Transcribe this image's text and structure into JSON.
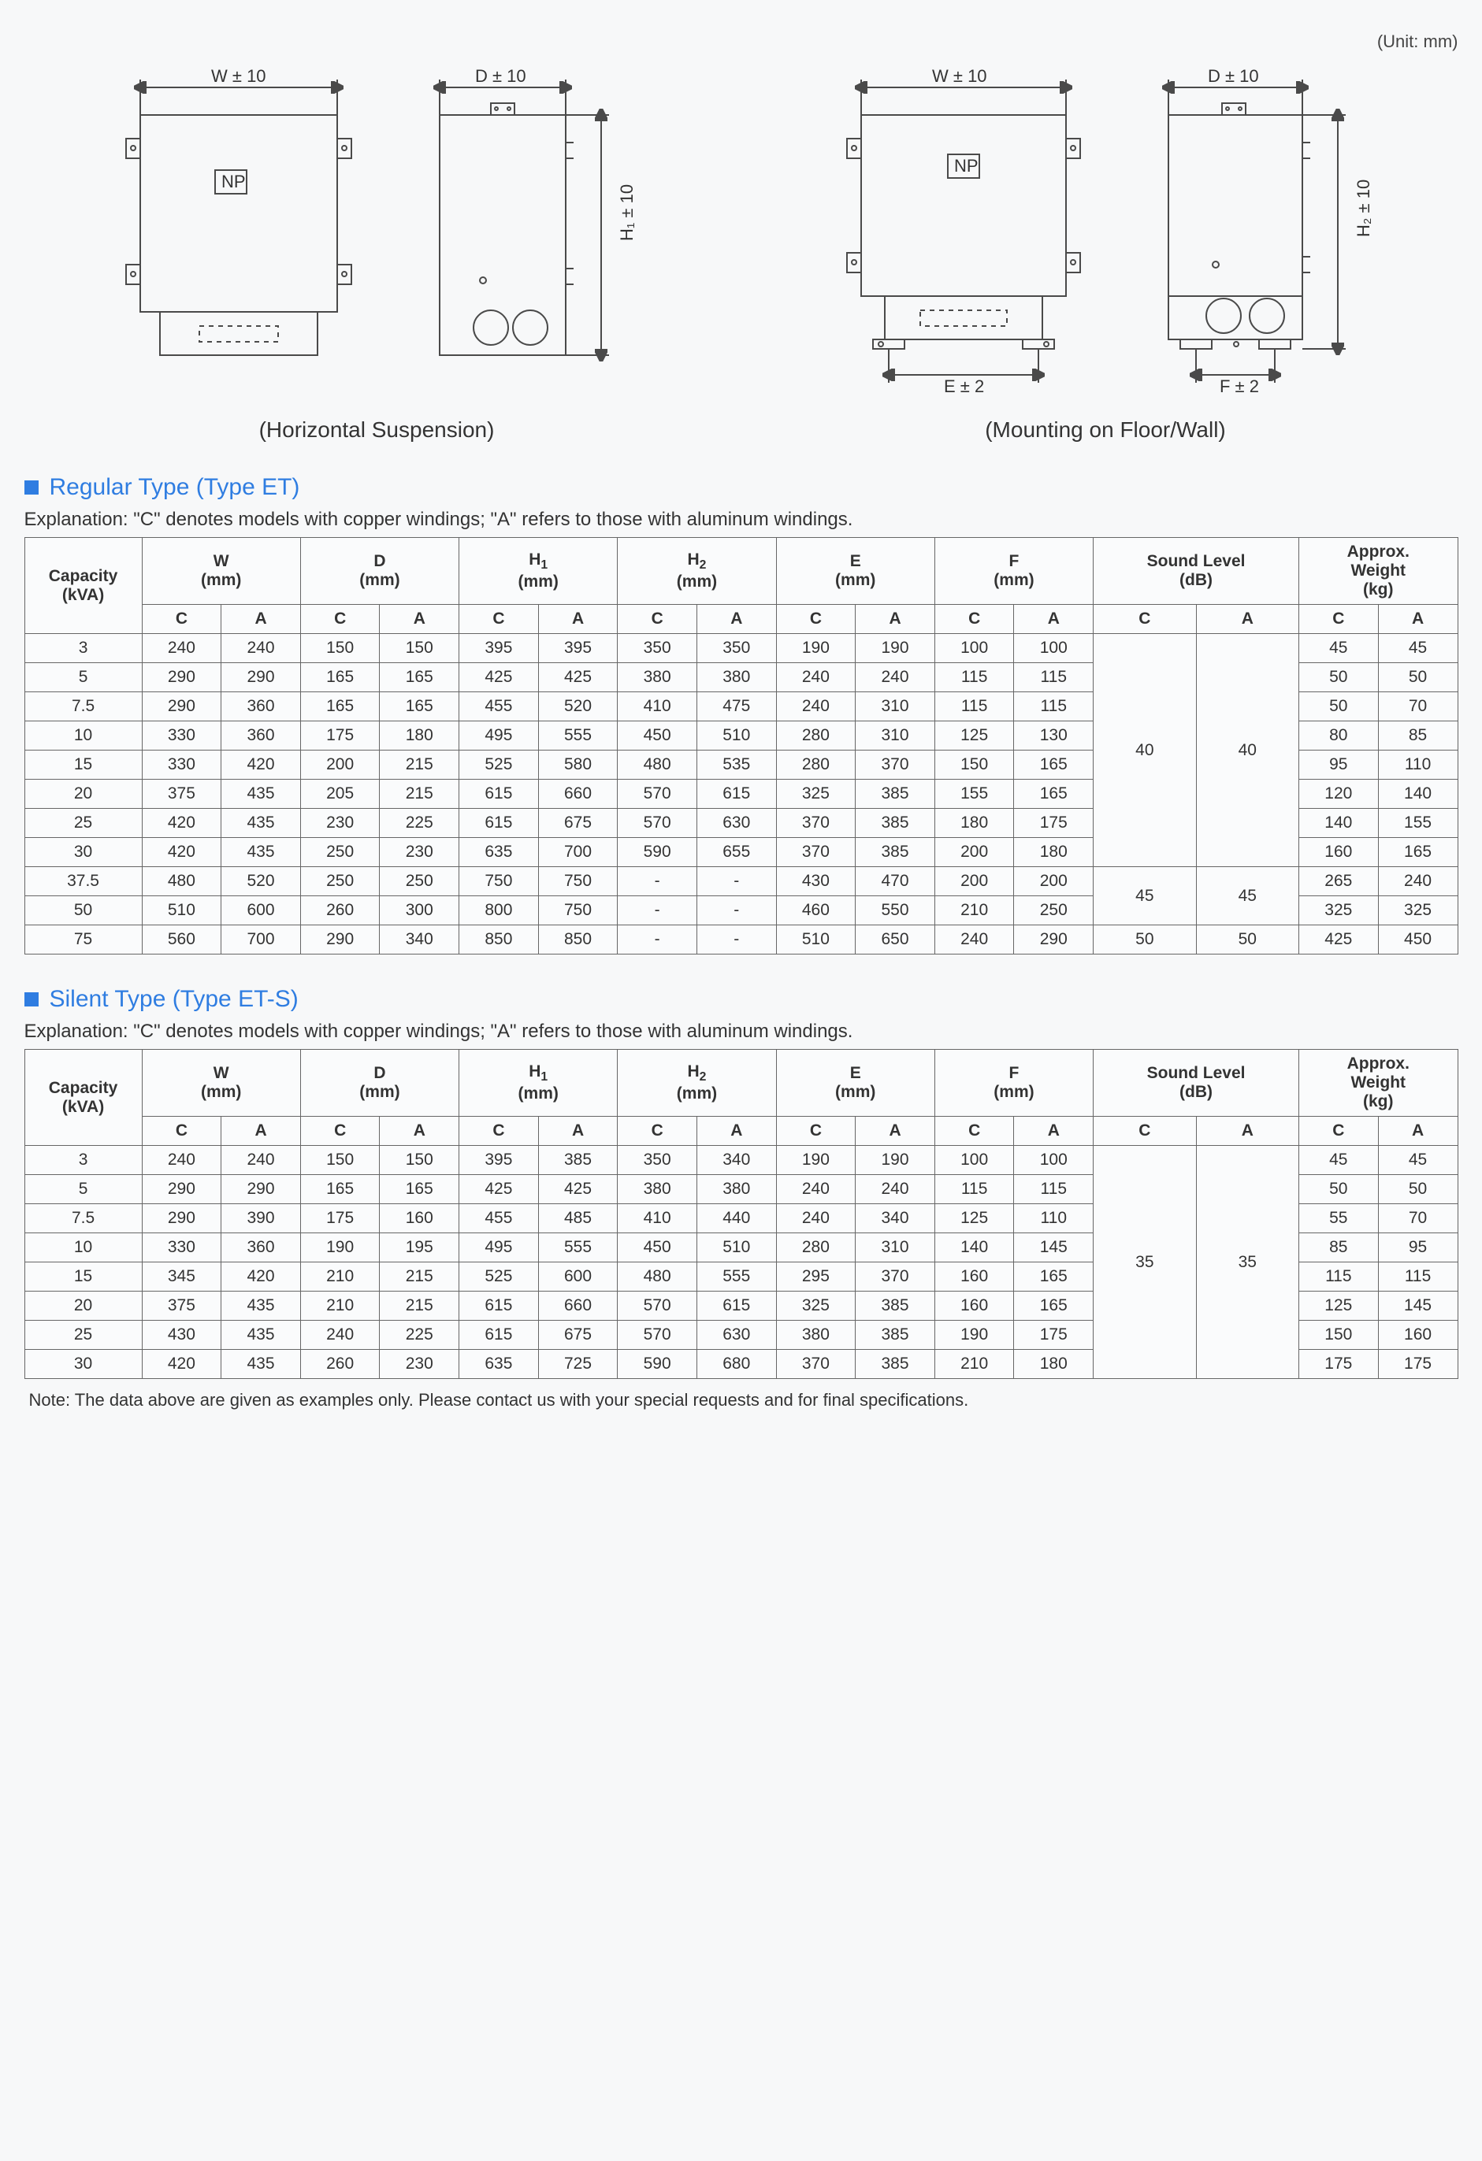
{
  "unit_label": "(Unit: mm)",
  "diagrams": {
    "horizontal": {
      "caption": "(Horizontal Suspension)"
    },
    "floor_wall": {
      "caption": "(Mounting on Floor/Wall)"
    },
    "labels": {
      "W": "W ± 10",
      "D": "D ± 10",
      "H1": "H₁ ± 10",
      "H2": "H₂ ± 10",
      "E": "E ± 2",
      "F": "F ± 2",
      "NP": "NP"
    },
    "colors": {
      "stroke": "#4a4a4a",
      "fill": "#f7f8f9",
      "text": "#333333"
    }
  },
  "sections": [
    {
      "title": "Regular Type (Type ET)",
      "explanation": "Explanation: \"C\" denotes models with copper windings; \"A\" refers to those with aluminum windings.",
      "headers": {
        "capacity": "Capacity\n(kVA)",
        "dim_cols": [
          {
            "label": "W",
            "unit": "(mm)"
          },
          {
            "label": "D",
            "unit": "(mm)"
          },
          {
            "label": "H1",
            "unit": "(mm)",
            "sub": "1"
          },
          {
            "label": "H2",
            "unit": "(mm)",
            "sub": "2"
          },
          {
            "label": "E",
            "unit": "(mm)"
          },
          {
            "label": "F",
            "unit": "(mm)"
          }
        ],
        "sound": "Sound Level\n(dB)",
        "weight": "Approx.\nWeight\n(kg)",
        "CA": [
          "C",
          "A"
        ]
      },
      "sound_merge": [
        {
          "rows": 8,
          "C": "40",
          "A": "40"
        },
        {
          "rows": 2,
          "C": "45",
          "A": "45"
        },
        {
          "rows": 1,
          "C": "50",
          "A": "50"
        }
      ],
      "rows": [
        {
          "cap": "3",
          "W": [
            "240",
            "240"
          ],
          "D": [
            "150",
            "150"
          ],
          "H1": [
            "395",
            "395"
          ],
          "H2": [
            "350",
            "350"
          ],
          "E": [
            "190",
            "190"
          ],
          "F": [
            "100",
            "100"
          ],
          "wt": [
            "45",
            "45"
          ]
        },
        {
          "cap": "5",
          "W": [
            "290",
            "290"
          ],
          "D": [
            "165",
            "165"
          ],
          "H1": [
            "425",
            "425"
          ],
          "H2": [
            "380",
            "380"
          ],
          "E": [
            "240",
            "240"
          ],
          "F": [
            "115",
            "115"
          ],
          "wt": [
            "50",
            "50"
          ]
        },
        {
          "cap": "7.5",
          "W": [
            "290",
            "360"
          ],
          "D": [
            "165",
            "165"
          ],
          "H1": [
            "455",
            "520"
          ],
          "H2": [
            "410",
            "475"
          ],
          "E": [
            "240",
            "310"
          ],
          "F": [
            "115",
            "115"
          ],
          "wt": [
            "50",
            "70"
          ]
        },
        {
          "cap": "10",
          "W": [
            "330",
            "360"
          ],
          "D": [
            "175",
            "180"
          ],
          "H1": [
            "495",
            "555"
          ],
          "H2": [
            "450",
            "510"
          ],
          "E": [
            "280",
            "310"
          ],
          "F": [
            "125",
            "130"
          ],
          "wt": [
            "80",
            "85"
          ]
        },
        {
          "cap": "15",
          "W": [
            "330",
            "420"
          ],
          "D": [
            "200",
            "215"
          ],
          "H1": [
            "525",
            "580"
          ],
          "H2": [
            "480",
            "535"
          ],
          "E": [
            "280",
            "370"
          ],
          "F": [
            "150",
            "165"
          ],
          "wt": [
            "95",
            "110"
          ]
        },
        {
          "cap": "20",
          "W": [
            "375",
            "435"
          ],
          "D": [
            "205",
            "215"
          ],
          "H1": [
            "615",
            "660"
          ],
          "H2": [
            "570",
            "615"
          ],
          "E": [
            "325",
            "385"
          ],
          "F": [
            "155",
            "165"
          ],
          "wt": [
            "120",
            "140"
          ]
        },
        {
          "cap": "25",
          "W": [
            "420",
            "435"
          ],
          "D": [
            "230",
            "225"
          ],
          "H1": [
            "615",
            "675"
          ],
          "H2": [
            "570",
            "630"
          ],
          "E": [
            "370",
            "385"
          ],
          "F": [
            "180",
            "175"
          ],
          "wt": [
            "140",
            "155"
          ]
        },
        {
          "cap": "30",
          "W": [
            "420",
            "435"
          ],
          "D": [
            "250",
            "230"
          ],
          "H1": [
            "635",
            "700"
          ],
          "H2": [
            "590",
            "655"
          ],
          "E": [
            "370",
            "385"
          ],
          "F": [
            "200",
            "180"
          ],
          "wt": [
            "160",
            "165"
          ]
        },
        {
          "cap": "37.5",
          "W": [
            "480",
            "520"
          ],
          "D": [
            "250",
            "250"
          ],
          "H1": [
            "750",
            "750"
          ],
          "H2": [
            "-",
            "-"
          ],
          "E": [
            "430",
            "470"
          ],
          "F": [
            "200",
            "200"
          ],
          "wt": [
            "265",
            "240"
          ]
        },
        {
          "cap": "50",
          "W": [
            "510",
            "600"
          ],
          "D": [
            "260",
            "300"
          ],
          "H1": [
            "800",
            "750"
          ],
          "H2": [
            "-",
            "-"
          ],
          "E": [
            "460",
            "550"
          ],
          "F": [
            "210",
            "250"
          ],
          "wt": [
            "325",
            "325"
          ]
        },
        {
          "cap": "75",
          "W": [
            "560",
            "700"
          ],
          "D": [
            "290",
            "340"
          ],
          "H1": [
            "850",
            "850"
          ],
          "H2": [
            "-",
            "-"
          ],
          "E": [
            "510",
            "650"
          ],
          "F": [
            "240",
            "290"
          ],
          "wt": [
            "425",
            "450"
          ]
        }
      ]
    },
    {
      "title": "Silent Type (Type ET-S)",
      "explanation": "Explanation: \"C\" denotes models with copper windings; \"A\" refers to those with aluminum windings.",
      "headers": {
        "capacity": "Capacity\n(kVA)",
        "dim_cols": [
          {
            "label": "W",
            "unit": "(mm)"
          },
          {
            "label": "D",
            "unit": "(mm)"
          },
          {
            "label": "H1",
            "unit": "(mm)",
            "sub": "1"
          },
          {
            "label": "H2",
            "unit": "(mm)",
            "sub": "2"
          },
          {
            "label": "E",
            "unit": "(mm)"
          },
          {
            "label": "F",
            "unit": "(mm)"
          }
        ],
        "sound": "Sound Level\n(dB)",
        "weight": "Approx.\nWeight\n(kg)",
        "CA": [
          "C",
          "A"
        ]
      },
      "sound_merge": [
        {
          "rows": 8,
          "C": "35",
          "A": "35"
        }
      ],
      "rows": [
        {
          "cap": "3",
          "W": [
            "240",
            "240"
          ],
          "D": [
            "150",
            "150"
          ],
          "H1": [
            "395",
            "385"
          ],
          "H2": [
            "350",
            "340"
          ],
          "E": [
            "190",
            "190"
          ],
          "F": [
            "100",
            "100"
          ],
          "wt": [
            "45",
            "45"
          ]
        },
        {
          "cap": "5",
          "W": [
            "290",
            "290"
          ],
          "D": [
            "165",
            "165"
          ],
          "H1": [
            "425",
            "425"
          ],
          "H2": [
            "380",
            "380"
          ],
          "E": [
            "240",
            "240"
          ],
          "F": [
            "115",
            "115"
          ],
          "wt": [
            "50",
            "50"
          ]
        },
        {
          "cap": "7.5",
          "W": [
            "290",
            "390"
          ],
          "D": [
            "175",
            "160"
          ],
          "H1": [
            "455",
            "485"
          ],
          "H2": [
            "410",
            "440"
          ],
          "E": [
            "240",
            "340"
          ],
          "F": [
            "125",
            "110"
          ],
          "wt": [
            "55",
            "70"
          ]
        },
        {
          "cap": "10",
          "W": [
            "330",
            "360"
          ],
          "D": [
            "190",
            "195"
          ],
          "H1": [
            "495",
            "555"
          ],
          "H2": [
            "450",
            "510"
          ],
          "E": [
            "280",
            "310"
          ],
          "F": [
            "140",
            "145"
          ],
          "wt": [
            "85",
            "95"
          ]
        },
        {
          "cap": "15",
          "W": [
            "345",
            "420"
          ],
          "D": [
            "210",
            "215"
          ],
          "H1": [
            "525",
            "600"
          ],
          "H2": [
            "480",
            "555"
          ],
          "E": [
            "295",
            "370"
          ],
          "F": [
            "160",
            "165"
          ],
          "wt": [
            "115",
            "115"
          ]
        },
        {
          "cap": "20",
          "W": [
            "375",
            "435"
          ],
          "D": [
            "210",
            "215"
          ],
          "H1": [
            "615",
            "660"
          ],
          "H2": [
            "570",
            "615"
          ],
          "E": [
            "325",
            "385"
          ],
          "F": [
            "160",
            "165"
          ],
          "wt": [
            "125",
            "145"
          ]
        },
        {
          "cap": "25",
          "W": [
            "430",
            "435"
          ],
          "D": [
            "240",
            "225"
          ],
          "H1": [
            "615",
            "675"
          ],
          "H2": [
            "570",
            "630"
          ],
          "E": [
            "380",
            "385"
          ],
          "F": [
            "190",
            "175"
          ],
          "wt": [
            "150",
            "160"
          ]
        },
        {
          "cap": "30",
          "W": [
            "420",
            "435"
          ],
          "D": [
            "260",
            "230"
          ],
          "H1": [
            "635",
            "725"
          ],
          "H2": [
            "590",
            "680"
          ],
          "E": [
            "370",
            "385"
          ],
          "F": [
            "210",
            "180"
          ],
          "wt": [
            "175",
            "175"
          ]
        }
      ]
    }
  ],
  "note": "Note: The data above are given as examples only. Please contact us with your special requests and for final specifications."
}
